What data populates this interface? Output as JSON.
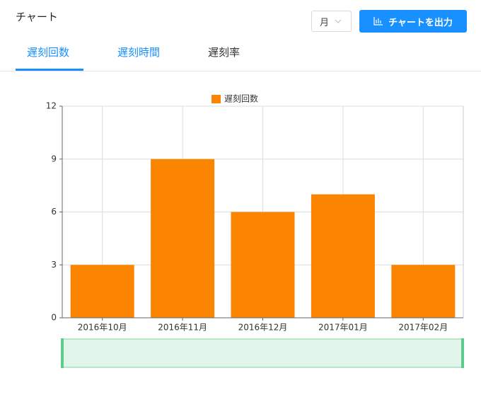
{
  "header": {
    "title": "チャート",
    "period": "月",
    "export": "チャートを出力"
  },
  "tabs": [
    "遅刻回数",
    "遅刻時間",
    "遅刻率"
  ],
  "chart_data": {
    "type": "bar",
    "categories": [
      "2016年10月",
      "2016年11月",
      "2016年12月",
      "2017年01月",
      "2017年02月"
    ],
    "series": [
      {
        "name": "遅刻回数",
        "color": "#fb8500",
        "values": [
          3,
          9,
          6,
          7,
          3
        ]
      }
    ],
    "ylim": [
      0,
      12
    ],
    "yticks": [
      0,
      3,
      6,
      9,
      12
    ],
    "grid": true
  }
}
